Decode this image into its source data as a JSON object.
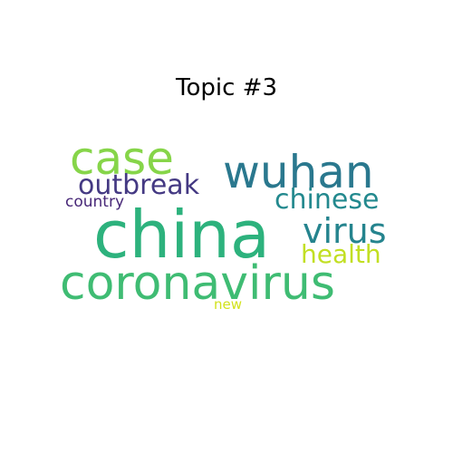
{
  "chart_data": {
    "type": "wordcloud",
    "title": "Topic #3",
    "words": [
      {
        "text": "china",
        "weight": 1.0,
        "color": "#2db27d"
      },
      {
        "text": "coronavirus",
        "weight": 0.82,
        "color": "#3fbc73"
      },
      {
        "text": "wuhan",
        "weight": 0.62,
        "color": "#2a788e"
      },
      {
        "text": "case",
        "weight": 0.58,
        "color": "#86d549"
      },
      {
        "text": "outbreak",
        "weight": 0.38,
        "color": "#443983"
      },
      {
        "text": "virus",
        "weight": 0.4,
        "color": "#25848e"
      },
      {
        "text": "chinese",
        "weight": 0.34,
        "color": "#23898e"
      },
      {
        "text": "health",
        "weight": 0.3,
        "color": "#c2df23"
      },
      {
        "text": "country",
        "weight": 0.22,
        "color": "#482878"
      },
      {
        "text": "new",
        "weight": 0.18,
        "color": "#d2e21b"
      }
    ]
  }
}
